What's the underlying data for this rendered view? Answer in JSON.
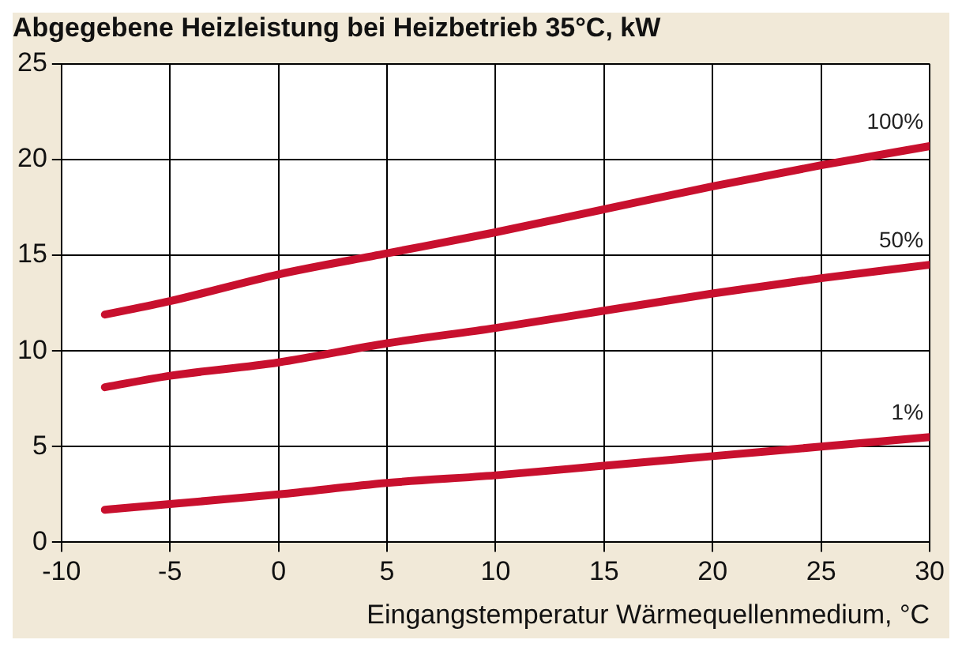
{
  "chart_data": {
    "type": "line",
    "title": "Abgegebene Heizleistung bei Heizbetrieb 35°C, kW",
    "xlabel": "Eingangstemperatur Wärmequellenmedium, °C",
    "x": [
      -8,
      -5,
      0,
      5,
      10,
      15,
      20,
      25,
      30
    ],
    "series": [
      {
        "name": "100%",
        "color": "#c8102e",
        "values": [
          11.9,
          12.6,
          14.0,
          15.1,
          16.2,
          17.4,
          18.6,
          19.7,
          20.7
        ]
      },
      {
        "name": "50%",
        "color": "#c8102e",
        "values": [
          8.1,
          8.7,
          9.4,
          10.4,
          11.2,
          12.1,
          13.0,
          13.8,
          14.5
        ]
      },
      {
        "name": "1%",
        "color": "#c8102e",
        "values": [
          1.7,
          2.0,
          2.5,
          3.1,
          3.5,
          4.0,
          4.5,
          5.0,
          5.5
        ]
      }
    ],
    "xlim": [
      -10,
      30
    ],
    "xticks": [
      -10,
      -5,
      0,
      5,
      10,
      15,
      20,
      25,
      30
    ],
    "ylim": [
      0,
      25
    ],
    "yticks": [
      0,
      5,
      10,
      15,
      20,
      25
    ],
    "grid": true,
    "legend": false,
    "marker": "none",
    "line_style": "solid"
  }
}
